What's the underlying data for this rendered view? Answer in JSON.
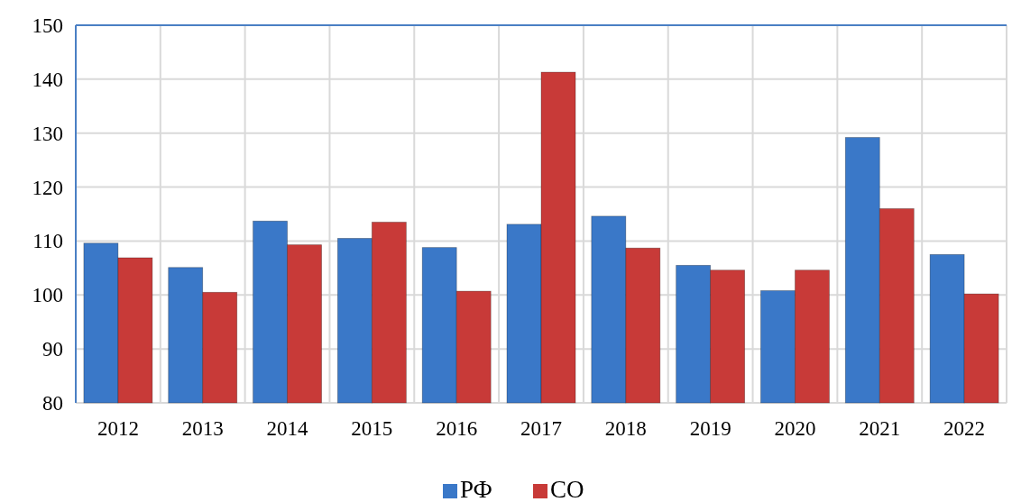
{
  "chart_data": {
    "type": "bar",
    "categories": [
      "2012",
      "2013",
      "2014",
      "2015",
      "2016",
      "2017",
      "2018",
      "2019",
      "2020",
      "2021",
      "2022"
    ],
    "series": [
      {
        "name": "РФ",
        "color": "#3a78c8",
        "values": [
          109.6,
          105.1,
          113.7,
          110.5,
          108.8,
          113.1,
          114.6,
          105.5,
          100.8,
          129.2,
          107.5
        ]
      },
      {
        "name": "СО",
        "color": "#c83a38",
        "values": [
          106.9,
          100.5,
          109.3,
          113.5,
          100.7,
          141.3,
          108.7,
          104.6,
          104.6,
          116.0,
          100.2
        ]
      }
    ],
    "ylim": [
      80,
      150
    ],
    "yticks": [
      80,
      90,
      100,
      110,
      120,
      130,
      140,
      150
    ],
    "grid": true,
    "legend": "bottom"
  }
}
